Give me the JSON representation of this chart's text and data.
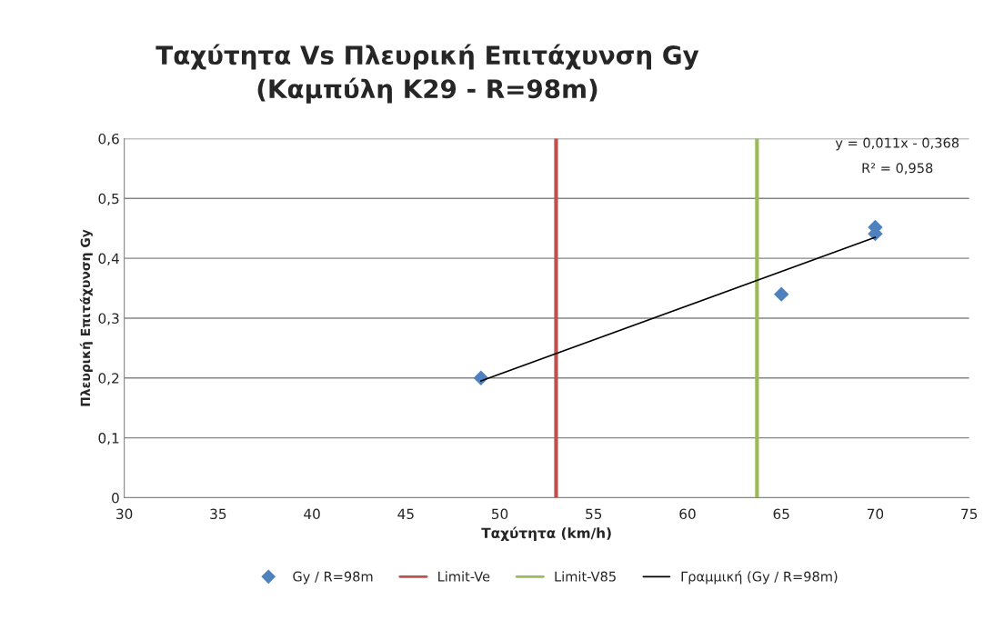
{
  "chart_data": {
    "type": "scatter",
    "title": "Ταχύτητα Vs Πλευρική Επιτάχυνση Gy\n(Καμπύλη Κ29 - R=98m)",
    "xlabel": "Ταχύτητα (km/h)",
    "ylabel": "Πλευρική Επιτάχυνση Gy",
    "series": [
      {
        "name": "Gy / R=98m",
        "color": "#4f81bd",
        "marker": "diamond",
        "x": [
          49,
          65,
          70,
          70
        ],
        "values": [
          0.2,
          0.34,
          0.452,
          0.441
        ]
      },
      {
        "name": "Γραμμική (Gy / R=98m)",
        "type": "line",
        "color": "#000000",
        "marker": "none",
        "line_style": "solid",
        "x": [
          49,
          70
        ],
        "values": [
          0.195,
          0.435
        ]
      }
    ],
    "ref_lines": [
      {
        "axis": "x",
        "value": 53,
        "label": "Limit-Ve",
        "color": "#c0504d"
      },
      {
        "axis": "x",
        "value": 63.7,
        "label": "Limit-V85",
        "color": "#9bbb59"
      }
    ],
    "annotations": [
      "y = 0,011x - 0,368",
      "R² = 0,958"
    ],
    "xlim": [
      30,
      75
    ],
    "xticks": [
      30,
      35,
      40,
      45,
      50,
      55,
      60,
      65,
      70,
      75
    ],
    "ylim": [
      0,
      0.6
    ],
    "yticks": [
      0,
      {
        "value": 0.1,
        "label": "0,1"
      },
      {
        "value": 0.2,
        "label": "0,2"
      },
      {
        "value": 0.3,
        "label": "0,3"
      },
      {
        "value": 0.4,
        "label": "0,4"
      },
      {
        "value": 0.5,
        "label": "0,5"
      },
      {
        "value": 0.6,
        "label": "0,6"
      }
    ],
    "grid": "y",
    "legend": "bottom"
  }
}
